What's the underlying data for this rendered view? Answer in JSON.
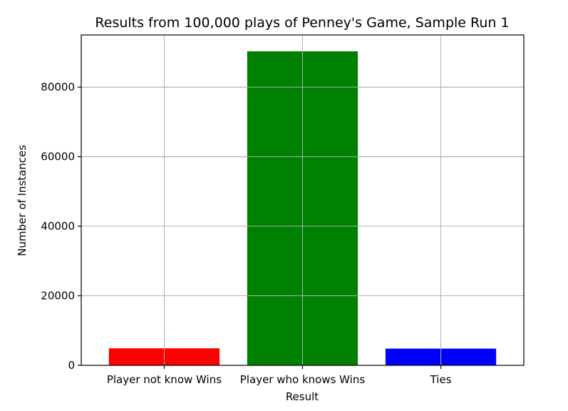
{
  "chart_data": {
    "type": "bar",
    "title": "Results from 100,000 plays of Penney's Game, Sample Run 1",
    "xlabel": "Result",
    "ylabel": "Number of Instances",
    "categories": [
      "Player not know Wins",
      "Player who knows Wins",
      "Ties"
    ],
    "values": [
      4900,
      90300,
      4800
    ],
    "colors": [
      "#ff0000",
      "#008000",
      "#0000ff"
    ],
    "ylim": [
      0,
      95000
    ],
    "yticks": [
      0,
      20000,
      40000,
      60000,
      80000
    ],
    "ytick_labels": [
      "0",
      "20000",
      "40000",
      "60000",
      "80000"
    ],
    "grid": true,
    "legend": "none"
  }
}
